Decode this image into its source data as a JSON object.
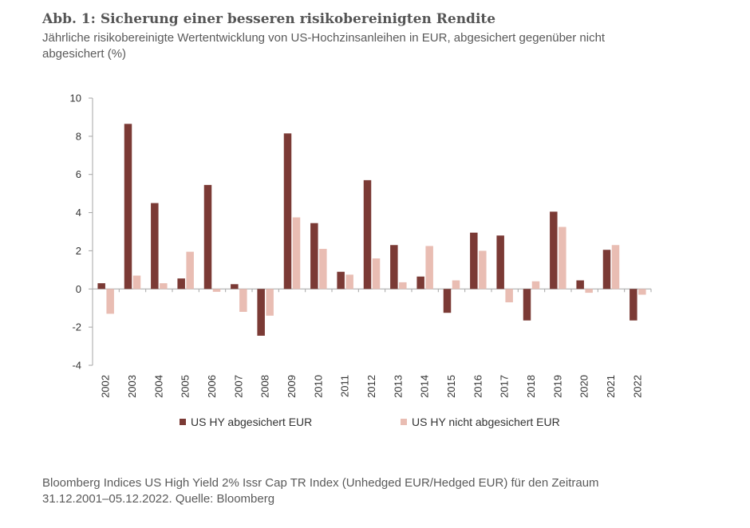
{
  "header": {
    "title": "Abb. 1: Sicherung einer besseren risikobereinigten Rendite",
    "subtitle": "Jährliche risikobereinigte Wertentwicklung von US-Hochzinsanleihen in EUR, abgesichert gegenüber nicht abgesichert (%)"
  },
  "footer": {
    "line1": "Bloomberg Indices US High Yield 2% Issr Cap TR Index (Unhedged EUR/Hedged EUR) für den Zeitraum",
    "line2": "31.12.2001–05.12.2022. Quelle: Bloomberg"
  },
  "chart_data": {
    "type": "bar",
    "title": "Abb. 1: Sicherung einer besseren risikobereinigten Rendite",
    "xlabel": "",
    "ylabel": "",
    "ylim": [
      -4,
      10
    ],
    "yticks": [
      -4,
      -2,
      0,
      2,
      4,
      6,
      8,
      10
    ],
    "grid": false,
    "legend_position": "bottom",
    "categories": [
      "2002",
      "2003",
      "2004",
      "2005",
      "2006",
      "2007",
      "2008",
      "2009",
      "2010",
      "2011",
      "2012",
      "2013",
      "2014",
      "2015",
      "2016",
      "2017",
      "2018",
      "2019",
      "2020",
      "2021",
      "2022"
    ],
    "series": [
      {
        "name": "US HY abgesichert EUR",
        "color": "#7b3a35",
        "values": [
          0.3,
          8.65,
          4.5,
          0.55,
          5.45,
          0.25,
          -2.45,
          8.15,
          3.45,
          0.9,
          5.7,
          2.3,
          0.65,
          -1.25,
          2.95,
          2.8,
          -1.65,
          4.05,
          0.45,
          2.05,
          -1.65
        ]
      },
      {
        "name": "US HY nicht abgesichert EUR",
        "color": "#e9bdb3",
        "values": [
          -1.3,
          0.7,
          0.3,
          1.95,
          -0.15,
          -1.2,
          -1.4,
          3.75,
          2.1,
          0.75,
          1.6,
          0.35,
          2.25,
          0.45,
          2.0,
          -0.7,
          0.4,
          3.25,
          -0.2,
          2.3,
          -0.3
        ]
      }
    ]
  }
}
